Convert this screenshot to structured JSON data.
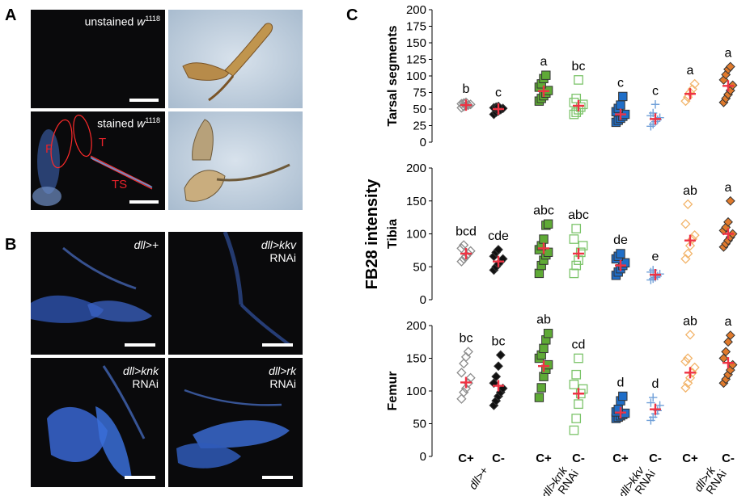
{
  "panels": {
    "A": {
      "letter": "A",
      "top_label": "unstained ",
      "top_genotype": "w",
      "top_sup": "1118",
      "bottom_label": "stained ",
      "bottom_genotype": "w",
      "bottom_sup": "1118",
      "regions": {
        "femur": "F",
        "tibia": "T",
        "tarsal": "TS"
      }
    },
    "B": {
      "letter": "B",
      "images": [
        {
          "line1": "dll>+",
          "line2": ""
        },
        {
          "line1": "dll>kkv",
          "line2": "RNAi"
        },
        {
          "line1": "dll>knk",
          "line2": "RNAi"
        },
        {
          "line1": "dll>rk",
          "line2": "RNAi"
        }
      ]
    },
    "C": {
      "letter": "C"
    }
  },
  "chart_data": {
    "type": "scatter",
    "ylabel": "FB28 intensity",
    "groups": [
      {
        "x_label": "dll>+",
        "line2": ""
      },
      {
        "x_label": "dll>knk",
        "line2": "RNAi"
      },
      {
        "x_label": "dll>kkv",
        "line2": "RNAi"
      },
      {
        "x_label": "dll>rk",
        "line2": "RNAi"
      }
    ],
    "conditions": [
      "C+",
      "C-",
      "C+",
      "C-",
      "C+",
      "C-",
      "C+",
      "C-"
    ],
    "series_colors": [
      "#8c8c8c",
      "#111111",
      "#5faa36",
      "#7cc46a",
      "#1f6ec8",
      "#6f9fd8",
      "#f2b46a",
      "#e07a2c"
    ],
    "mean_color": "#ee3344",
    "subplots": [
      {
        "title": "Tarsal segments",
        "ylim": [
          0,
          200
        ],
        "yticks": [
          0,
          25,
          50,
          75,
          100,
          125,
          150,
          175,
          200
        ],
        "letters": [
          "b",
          "c",
          "a",
          "bc",
          "c",
          "c",
          "a",
          "a"
        ],
        "means": [
          56,
          50,
          77,
          55,
          42,
          35,
          73,
          85
        ],
        "values": [
          [
            52,
            54,
            55,
            56,
            57,
            58,
            59,
            60
          ],
          [
            42,
            45,
            47,
            49,
            51,
            52,
            53,
            54
          ],
          [
            62,
            66,
            70,
            74,
            78,
            83,
            88,
            96,
            101
          ],
          [
            42,
            45,
            49,
            53,
            57,
            60,
            66,
            94
          ],
          [
            30,
            33,
            36,
            39,
            42,
            46,
            51,
            56,
            69
          ],
          [
            24,
            27,
            31,
            34,
            37,
            40,
            44,
            57
          ],
          [
            62,
            68,
            75,
            80,
            88
          ],
          [
            60,
            66,
            72,
            78,
            86,
            94,
            102,
            110,
            114
          ]
        ]
      },
      {
        "title": "Tibia",
        "ylim": [
          0,
          200
        ],
        "yticks": [
          0,
          50,
          100,
          150,
          200
        ],
        "letters": [
          "bcd",
          "cde",
          "abc",
          "abc",
          "de",
          "e",
          "ab",
          "a"
        ],
        "means": [
          70,
          58,
          78,
          70,
          52,
          38,
          90,
          100
        ],
        "values": [
          [
            58,
            62,
            66,
            70,
            74,
            78,
            83
          ],
          [
            45,
            50,
            54,
            58,
            62,
            66,
            72,
            76
          ],
          [
            40,
            52,
            60,
            68,
            72,
            76,
            82,
            92,
            113,
            115
          ],
          [
            40,
            52,
            60,
            72,
            82,
            92,
            108
          ],
          [
            37,
            42,
            47,
            52,
            56,
            62,
            66,
            70
          ],
          [
            30,
            32,
            34,
            36,
            39,
            42,
            45
          ],
          [
            62,
            70,
            82,
            92,
            98,
            115,
            145
          ],
          [
            80,
            85,
            90,
            95,
            100,
            105,
            110,
            118,
            150
          ]
        ]
      },
      {
        "title": "Femur",
        "ylim": [
          0,
          200
        ],
        "yticks": [
          0,
          50,
          100,
          150,
          200
        ],
        "letters": [
          "bc",
          "bc",
          "ab",
          "cd",
          "d",
          "d",
          "ab",
          "a"
        ],
        "means": [
          113,
          108,
          138,
          96,
          67,
          72,
          128,
          143
        ],
        "values": [
          [
            88,
            98,
            104,
            112,
            120,
            128,
            142,
            152,
            160
          ],
          [
            78,
            85,
            92,
            98,
            104,
            112,
            122,
            138,
            155
          ],
          [
            90,
            105,
            122,
            133,
            140,
            150,
            155,
            165,
            178,
            188
          ],
          [
            40,
            58,
            80,
            96,
            103,
            110,
            125,
            150
          ],
          [
            58,
            60,
            62,
            64,
            66,
            68,
            72,
            85,
            92
          ],
          [
            55,
            60,
            65,
            70,
            78,
            82,
            90
          ],
          [
            105,
            112,
            120,
            128,
            136,
            145,
            150,
            186
          ],
          [
            112,
            118,
            125,
            132,
            140,
            150,
            160,
            175,
            185
          ]
        ]
      }
    ]
  }
}
